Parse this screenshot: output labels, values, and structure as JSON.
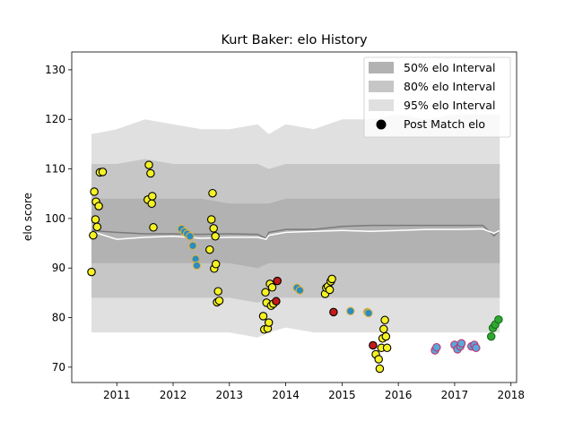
{
  "chart_data": {
    "type": "scatter",
    "title": "Kurt Baker: elo History",
    "xlabel": "",
    "ylabel": "elo score",
    "xlim": [
      2010.2,
      2018.1
    ],
    "ylim": [
      66.9,
      133.6
    ],
    "x_ticks": [
      2011,
      2012,
      2013,
      2014,
      2015,
      2016,
      2017,
      2018
    ],
    "y_ticks": [
      70,
      80,
      90,
      100,
      110,
      120,
      130
    ],
    "grid": false,
    "legend_position": "top-right",
    "legend": [
      {
        "label": "50% elo Interval",
        "color": "#b2b2b2"
      },
      {
        "label": "80% elo Interval",
        "color": "#c6c6c6"
      },
      {
        "label": "95% elo Interval",
        "color": "#e0e0e0"
      },
      {
        "label": "Post Match elo",
        "color": "#000000"
      }
    ],
    "bands": {
      "x": [
        2010.55,
        2011.0,
        2011.5,
        2012.0,
        2012.5,
        2013.0,
        2013.5,
        2013.7,
        2014.0,
        2014.5,
        2015.0,
        2015.5,
        2016.0,
        2016.5,
        2017.0,
        2017.5,
        2017.8
      ],
      "p95_upper": [
        117,
        118,
        120,
        119,
        118,
        118,
        119,
        117,
        119,
        118,
        120,
        120,
        121,
        120,
        121,
        121,
        121
      ],
      "p80_upper": [
        111,
        111,
        112,
        111,
        111,
        111,
        111,
        110,
        111,
        111,
        111,
        111,
        111,
        111,
        111,
        111,
        111
      ],
      "p50_upper": [
        104,
        104,
        104,
        104,
        104,
        103,
        103,
        103,
        104,
        104,
        104,
        104,
        104,
        104,
        104,
        104,
        104
      ],
      "p50_lower": [
        91,
        91,
        91,
        91,
        91,
        91,
        90,
        91,
        91,
        91,
        91,
        91,
        91,
        91,
        91,
        91,
        91
      ],
      "p80_lower": [
        84,
        84,
        84,
        84,
        84,
        84,
        83,
        84,
        84,
        84,
        84,
        84,
        84,
        84,
        84,
        84,
        84
      ],
      "p95_lower": [
        77,
        77,
        77,
        77,
        77,
        77,
        76,
        77,
        78,
        77,
        77,
        77,
        77,
        77,
        77,
        77,
        77
      ]
    },
    "mean_line": {
      "x": [
        2010.55,
        2011.0,
        2011.5,
        2012.0,
        2012.5,
        2013.0,
        2013.5,
        2013.65,
        2013.7,
        2014.0,
        2014.5,
        2015.0,
        2015.5,
        2016.0,
        2016.5,
        2017.0,
        2017.5,
        2017.7,
        2017.8
      ],
      "gray": [
        97.6,
        97.2,
        96.9,
        96.9,
        96.8,
        96.9,
        96.8,
        96.0,
        97.2,
        97.8,
        97.8,
        98.4,
        98.6,
        98.6,
        98.6,
        98.6,
        98.6,
        96.5,
        97.7
      ],
      "white": [
        97.4,
        95.8,
        96.2,
        96.4,
        96.0,
        96.2,
        96.2,
        95.8,
        96.6,
        97.2,
        97.4,
        97.6,
        97.4,
        97.6,
        97.8,
        97.8,
        97.9,
        97.0,
        97.6
      ]
    },
    "series": [
      {
        "fill": "#f5f224",
        "edge": "#000000",
        "points": [
          [
            2010.55,
            89.2
          ],
          [
            2010.58,
            96.6
          ],
          [
            2010.6,
            105.4
          ],
          [
            2010.62,
            99.8
          ],
          [
            2010.63,
            103.4
          ],
          [
            2010.65,
            98.3
          ],
          [
            2010.68,
            102.5
          ],
          [
            2010.7,
            109.3
          ],
          [
            2010.75,
            109.4
          ],
          [
            2011.55,
            103.8
          ],
          [
            2011.57,
            110.8
          ],
          [
            2011.6,
            109.1
          ],
          [
            2011.62,
            103.0
          ],
          [
            2011.63,
            104.5
          ],
          [
            2011.65,
            98.2
          ],
          [
            2012.65,
            93.7
          ],
          [
            2012.68,
            99.8
          ],
          [
            2012.7,
            105.1
          ],
          [
            2012.72,
            98.0
          ],
          [
            2012.73,
            89.9
          ],
          [
            2012.75,
            96.4
          ],
          [
            2012.76,
            90.8
          ],
          [
            2012.78,
            83.1
          ],
          [
            2012.8,
            85.3
          ],
          [
            2012.82,
            83.4
          ],
          [
            2013.6,
            80.3
          ],
          [
            2013.62,
            77.6
          ],
          [
            2013.64,
            85.1
          ],
          [
            2013.66,
            83.0
          ],
          [
            2013.68,
            77.8
          ],
          [
            2013.7,
            79.0
          ],
          [
            2013.72,
            86.8
          ],
          [
            2013.74,
            82.4
          ],
          [
            2013.76,
            86.1
          ],
          [
            2013.78,
            82.8
          ],
          [
            2014.7,
            84.8
          ],
          [
            2014.72,
            86.0
          ],
          [
            2014.75,
            86.3
          ],
          [
            2014.78,
            85.6
          ],
          [
            2014.8,
            87.3
          ],
          [
            2014.82,
            87.8
          ],
          [
            2015.6,
            72.6
          ],
          [
            2015.65,
            71.6
          ],
          [
            2015.67,
            69.7
          ],
          [
            2015.7,
            73.9
          ],
          [
            2015.72,
            75.8
          ],
          [
            2015.74,
            77.7
          ],
          [
            2015.76,
            79.5
          ],
          [
            2015.78,
            76.2
          ],
          [
            2015.8,
            73.9
          ]
        ]
      },
      {
        "fill": "#2a8cc2",
        "edge": "#e0b33a",
        "points": [
          [
            2012.15,
            97.9
          ],
          [
            2012.2,
            97.3
          ],
          [
            2012.25,
            96.9
          ],
          [
            2012.3,
            96.4
          ],
          [
            2012.35,
            94.5
          ],
          [
            2012.4,
            91.8
          ],
          [
            2012.42,
            90.5
          ],
          [
            2014.2,
            86.0
          ],
          [
            2014.25,
            85.5
          ],
          [
            2015.15,
            81.3
          ],
          [
            2015.45,
            81.1
          ],
          [
            2015.47,
            80.9
          ]
        ]
      },
      {
        "fill": "#c41a1a",
        "edge": "#000000",
        "points": [
          [
            2013.85,
            87.4
          ],
          [
            2013.83,
            83.3
          ],
          [
            2014.85,
            81.1
          ],
          [
            2015.55,
            74.4
          ]
        ]
      },
      {
        "fill": "#5aa8d8",
        "edge": "#c03070",
        "points": [
          [
            2016.65,
            73.4
          ],
          [
            2016.68,
            74.0
          ],
          [
            2017.0,
            74.5
          ],
          [
            2017.05,
            73.6
          ],
          [
            2017.1,
            74.2
          ],
          [
            2017.12,
            74.8
          ],
          [
            2017.3,
            74.2
          ],
          [
            2017.35,
            74.5
          ],
          [
            2017.38,
            73.9
          ]
        ]
      },
      {
        "fill": "#2ea832",
        "edge": "#1a6a1a",
        "points": [
          [
            2017.65,
            76.2
          ],
          [
            2017.68,
            77.9
          ],
          [
            2017.72,
            78.6
          ],
          [
            2017.78,
            79.6
          ]
        ]
      }
    ]
  }
}
